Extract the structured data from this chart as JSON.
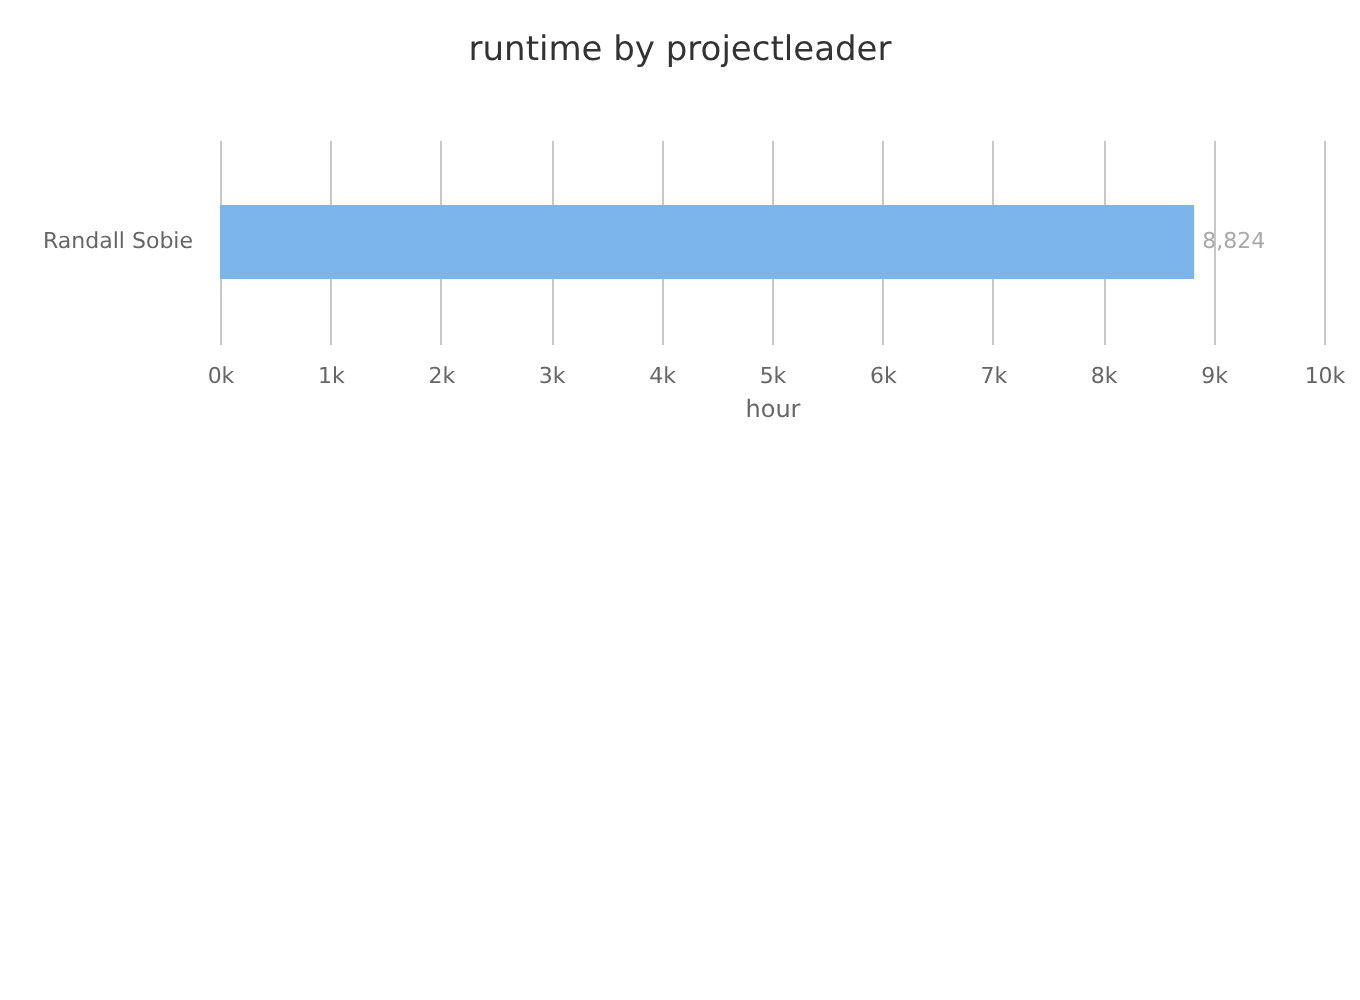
{
  "chart_data": {
    "type": "bar",
    "orientation": "horizontal",
    "title": "runtime by projectleader",
    "xlabel": "hour",
    "categories": [
      "Randall Sobie"
    ],
    "values": [
      8824
    ],
    "color": "#7cb5ec",
    "value_labels": [
      "8,824"
    ],
    "xlim": [
      0,
      10000
    ],
    "xticks": [
      {
        "value": 0,
        "label": "0k"
      },
      {
        "value": 1000,
        "label": "1k"
      },
      {
        "value": 2000,
        "label": "2k"
      },
      {
        "value": 3000,
        "label": "3k"
      },
      {
        "value": 4000,
        "label": "4k"
      },
      {
        "value": 5000,
        "label": "5k"
      },
      {
        "value": 6000,
        "label": "6k"
      },
      {
        "value": 7000,
        "label": "7k"
      },
      {
        "value": 8000,
        "label": "8k"
      },
      {
        "value": 9000,
        "label": "9k"
      },
      {
        "value": 10000,
        "label": "10k"
      }
    ],
    "grid": "x"
  }
}
